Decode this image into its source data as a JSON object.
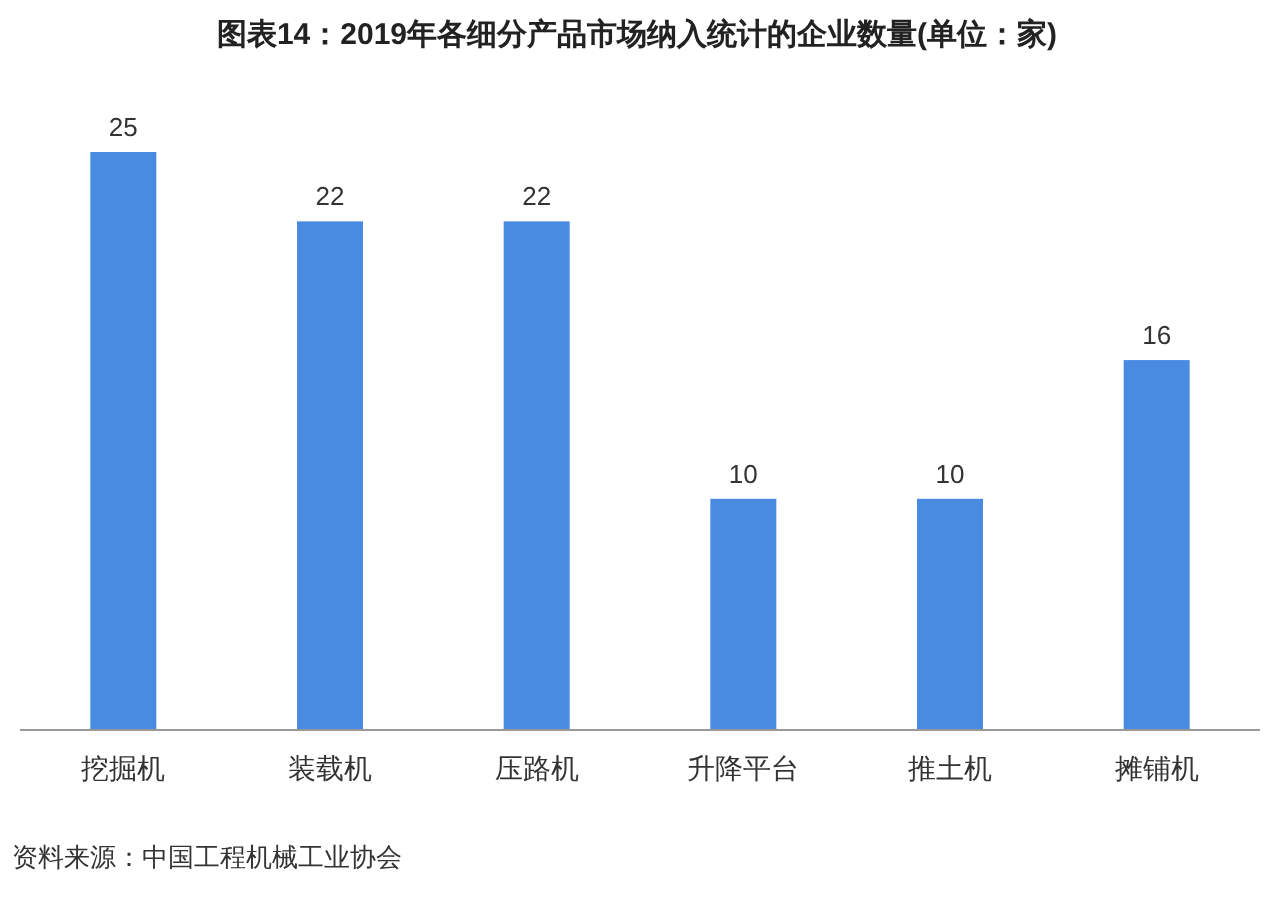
{
  "chart_data": {
    "type": "bar",
    "title": "图表14：2019年各细分产品市场纳入统计的企业数量(单位：家)",
    "categories": [
      "挖掘机",
      "装载机",
      "压路机",
      "升降平台",
      "推土机",
      "摊铺机"
    ],
    "values": [
      25,
      22,
      22,
      10,
      10,
      16
    ],
    "color": "#4a8be2",
    "data_labels": true,
    "annotations": [
      "资料来源：中国工程机械工业协会"
    ]
  }
}
